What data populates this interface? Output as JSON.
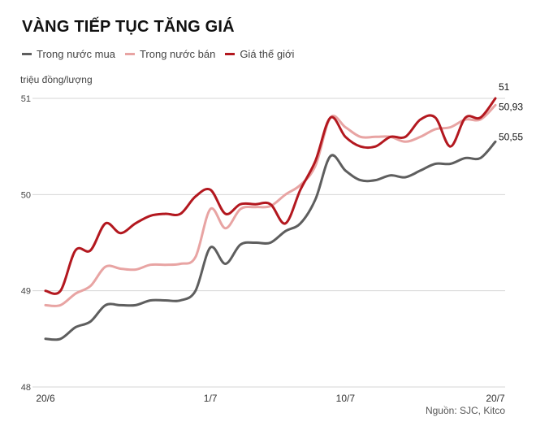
{
  "chart_data": {
    "type": "line",
    "title": "VÀNG TIẾP TỤC TĂNG GIÁ",
    "ylabel": "triệu đồng/lượng",
    "source": "Nguồn: SJC, Kitco",
    "ylim": [
      48,
      51
    ],
    "yticks": [
      48,
      49,
      50,
      51
    ],
    "xticks": [
      "20/6",
      "1/7",
      "10/7",
      "20/7"
    ],
    "xtick_index": [
      0,
      11,
      20,
      30
    ],
    "grid": true,
    "series": [
      {
        "name": "Trong nước mua",
        "color": "#5e5e5e",
        "values": [
          48.5,
          48.5,
          48.62,
          48.68,
          48.85,
          48.85,
          48.85,
          48.9,
          48.9,
          48.9,
          49.0,
          49.45,
          49.28,
          49.48,
          49.5,
          49.5,
          49.62,
          49.7,
          49.95,
          50.4,
          50.25,
          50.15,
          50.15,
          50.2,
          50.18,
          50.25,
          50.32,
          50.32,
          50.38,
          50.38,
          50.55
        ],
        "end_label": "50,55"
      },
      {
        "name": "Trong nước bán",
        "color": "#e8a4a3",
        "values": [
          48.85,
          48.85,
          48.97,
          49.05,
          49.25,
          49.23,
          49.22,
          49.27,
          49.27,
          49.28,
          49.35,
          49.85,
          49.65,
          49.85,
          49.87,
          49.88,
          50.0,
          50.1,
          50.3,
          50.8,
          50.7,
          50.6,
          50.6,
          50.6,
          50.55,
          50.6,
          50.68,
          50.7,
          50.78,
          50.78,
          50.93
        ],
        "end_label": "50,93"
      },
      {
        "name": "Giá thế giới",
        "color": "#b3181f",
        "values": [
          49.0,
          49.0,
          49.42,
          49.42,
          49.7,
          49.6,
          49.7,
          49.78,
          49.8,
          49.8,
          49.98,
          50.05,
          49.8,
          49.9,
          49.9,
          49.9,
          49.7,
          50.05,
          50.35,
          50.8,
          50.6,
          50.5,
          50.5,
          50.6,
          50.6,
          50.78,
          50.8,
          50.5,
          50.8,
          50.8,
          51.0
        ],
        "end_label": "51"
      }
    ]
  }
}
